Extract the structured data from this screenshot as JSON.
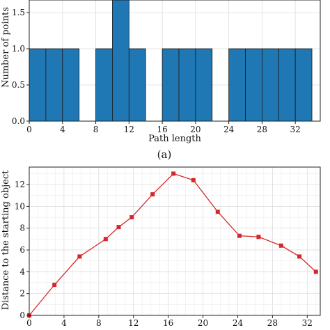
{
  "chart_data": [
    {
      "type": "bar",
      "xlabel": "Path length",
      "ylabel": "Number of points",
      "caption": "(a)",
      "xlim": [
        0,
        35
      ],
      "ylim": [
        0,
        1.75
      ],
      "bin_width": 2,
      "bar_color": "#1f77b4",
      "grid": true,
      "x_ticks": [
        "0",
        "4",
        "8",
        "12",
        "16",
        "20",
        "24",
        "28",
        "32"
      ],
      "x_tick_values": [
        0,
        4,
        8,
        12,
        16,
        20,
        24,
        28,
        32
      ],
      "y_ticks": [
        "0.0",
        "0.5",
        "1.0",
        "1.5"
      ],
      "y_tick_values": [
        0.0,
        0.5,
        1.0,
        1.5
      ],
      "bars": [
        {
          "x": 0,
          "value": 1.0
        },
        {
          "x": 2,
          "value": 1.0
        },
        {
          "x": 4,
          "value": 1.0
        },
        {
          "x": 8,
          "value": 1.0
        },
        {
          "x": 10,
          "value": 2.0
        },
        {
          "x": 12,
          "value": 1.0
        },
        {
          "x": 16,
          "value": 1.0
        },
        {
          "x": 18,
          "value": 1.0
        },
        {
          "x": 20,
          "value": 1.0
        },
        {
          "x": 24,
          "value": 1.0
        },
        {
          "x": 26,
          "value": 1.0
        },
        {
          "x": 28,
          "value": 1.0
        },
        {
          "x": 30,
          "value": 1.0
        },
        {
          "x": 32,
          "value": 1.0
        }
      ]
    },
    {
      "type": "line",
      "xlabel": "",
      "ylabel": "Distance to the starting object",
      "xlim": [
        0,
        33.5
      ],
      "ylim": [
        0,
        13.6
      ],
      "line_color": "#d62728",
      "grid": true,
      "x_ticks": [
        "0",
        "4",
        "8",
        "12",
        "16",
        "20",
        "24",
        "28",
        "32"
      ],
      "x_tick_values": [
        0,
        4,
        8,
        12,
        16,
        20,
        24,
        28,
        32
      ],
      "y_ticks": [
        "0",
        "2",
        "4",
        "6",
        "8",
        "10",
        "12"
      ],
      "y_tick_values": [
        0,
        2,
        4,
        6,
        8,
        10,
        12
      ],
      "x": [
        0,
        2.9,
        5.8,
        8.8,
        10.3,
        11.8,
        14.2,
        16.6,
        18.9,
        21.7,
        24.2,
        26.4,
        29.0,
        31.1,
        33.0
      ],
      "y": [
        0,
        2.8,
        5.4,
        7.0,
        8.1,
        9.0,
        11.1,
        13.0,
        12.4,
        9.5,
        7.3,
        7.2,
        6.4,
        5.4,
        4.0
      ]
    }
  ]
}
